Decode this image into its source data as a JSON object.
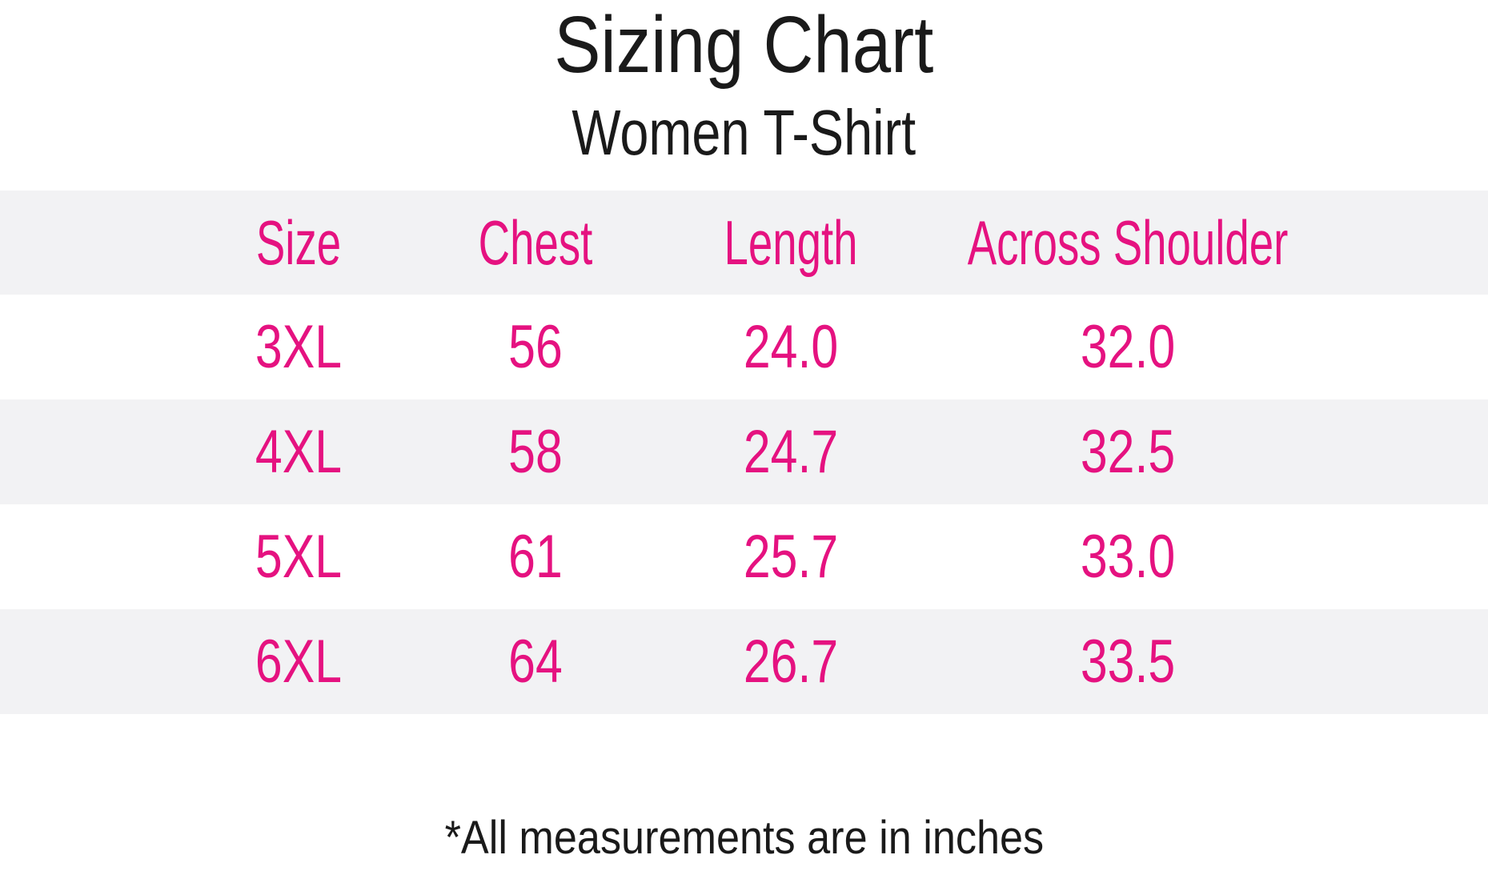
{
  "title": "Sizing Chart",
  "subtitle": "Women T-Shirt",
  "table": {
    "headers": [
      "Size",
      "Chest",
      "Length",
      "Across Shoulder"
    ],
    "rows": [
      [
        "3XL",
        "56",
        "24.0",
        "32.0"
      ],
      [
        "4XL",
        "58",
        "24.7",
        "32.5"
      ],
      [
        "5XL",
        "61",
        "25.7",
        "33.0"
      ],
      [
        "6XL",
        "64",
        "26.7",
        "33.5"
      ]
    ]
  },
  "footnote": "*All measurements are in inches",
  "colors": {
    "accent_pink": "#e51280",
    "band_gray": "#f2f2f4",
    "text_black": "#1a1a1a",
    "background": "#ffffff"
  }
}
